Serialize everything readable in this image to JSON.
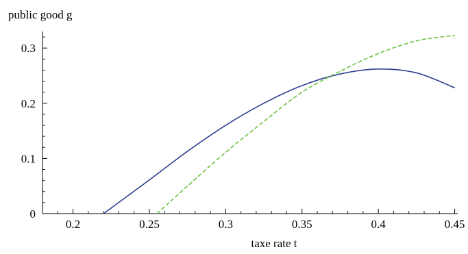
{
  "chart_data": {
    "type": "line",
    "ylabel": "public good g",
    "xlabel": "taxe rate t",
    "xlim": [
      0.18,
      0.452
    ],
    "ylim": [
      0,
      0.33
    ],
    "xticks": [
      0.2,
      0.25,
      0.3,
      0.35,
      0.4,
      0.45
    ],
    "xtick_labels": [
      "0.2",
      "0.25",
      "0.3",
      "0.35",
      "0.4",
      "0.45"
    ],
    "yticks": [
      0,
      0.1,
      0.2,
      0.3
    ],
    "ytick_labels": [
      "0",
      "0.1",
      "0.2",
      "0.3"
    ],
    "grid": false,
    "series": [
      {
        "color": "#2e3f91",
        "style": "solid",
        "x": [
          0.22,
          0.25,
          0.275,
          0.3,
          0.325,
          0.35,
          0.375,
          0.4,
          0.425,
          0.45
        ],
        "y": [
          0.0,
          0.061,
          0.113,
          0.16,
          0.2,
          0.232,
          0.253,
          0.262,
          0.255,
          0.228
        ]
      },
      {
        "color": "#6cc040",
        "style": "dashed",
        "x": [
          0.255,
          0.275,
          0.3,
          0.325,
          0.35,
          0.375,
          0.4,
          0.425,
          0.45
        ],
        "y": [
          0.0,
          0.05,
          0.111,
          0.167,
          0.22,
          0.258,
          0.29,
          0.313,
          0.323
        ]
      }
    ]
  }
}
